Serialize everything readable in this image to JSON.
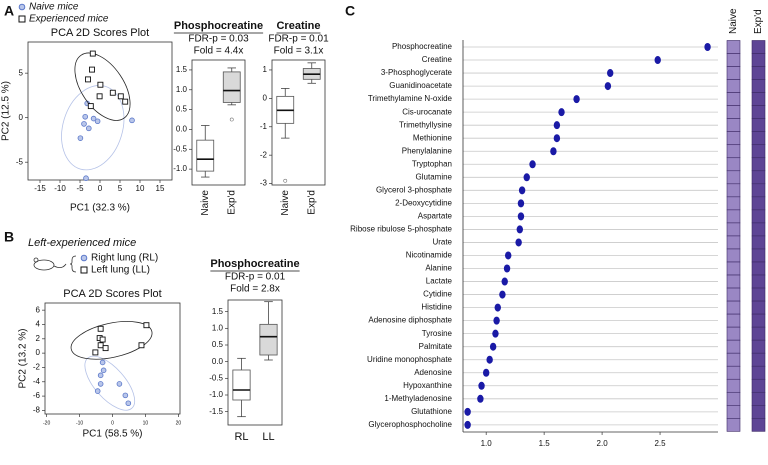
{
  "chart_data": [
    {
      "type": "scatter",
      "panel": "A",
      "title": "PCA 2D Scores Plot",
      "xlabel": "PC1 (32.3 %)",
      "ylabel": "PC2 (12.5 %)",
      "xlim": [
        -18,
        18
      ],
      "ylim": [
        -7,
        8.5
      ],
      "xticks": [
        -15,
        -10,
        -5,
        0,
        5,
        10,
        15
      ],
      "yticks": [
        -5,
        0,
        5
      ],
      "series": [
        {
          "name": "Naive mice",
          "color": "#5b78c9",
          "marker": "circle",
          "x": [
            -3.2,
            -3.7,
            -4,
            -4.9,
            -1.6,
            -0.6,
            -2.8,
            8,
            -3.5
          ],
          "values": [
            1.6,
            0.1,
            -0.7,
            -2.3,
            -0.1,
            -0.4,
            -1.2,
            -0.3,
            -6.8
          ]
        },
        {
          "name": "Experienced mice",
          "color": "#111111",
          "marker": "square",
          "x": [
            -1.8,
            -2,
            -3,
            0.1,
            -0.1,
            3.2,
            5.2,
            6.3,
            -2.3
          ],
          "values": [
            7.2,
            5.4,
            4.3,
            3.7,
            2.4,
            2.8,
            2.4,
            1.8,
            1.3
          ]
        }
      ]
    },
    {
      "type": "box",
      "title": "Phosphocreatine",
      "annotations": [
        "FDR-p = 0.03",
        "Fold = 4.4x"
      ],
      "categories": [
        "Naive",
        "Exp'd"
      ],
      "colors": [
        "#ffffff",
        "#d9d9d9"
      ],
      "ylim": [
        -1.4,
        1.75
      ],
      "yticks": [
        {
          "value": -1,
          "label": "-1.0"
        },
        -0.5,
        {
          "value": 0,
          "label": "0.0"
        },
        0.5,
        {
          "value": 1,
          "label": "1.0"
        },
        1.5
      ],
      "boxes": [
        {
          "min": -1.2,
          "q1": -1.05,
          "median": -0.75,
          "q3": -0.27,
          "max": 0.1,
          "outliers": []
        },
        {
          "min": 0.62,
          "q1": 0.68,
          "median": 0.98,
          "q3": 1.45,
          "max": 1.55,
          "outliers": [
            0.25
          ]
        }
      ]
    },
    {
      "type": "box",
      "title": "Creatine",
      "annotations": [
        "FDR-p = 0.01",
        "Fold = 3.1x"
      ],
      "categories": [
        "Naive",
        "Exp'd"
      ],
      "colors": [
        "#ffffff",
        "#d9d9d9"
      ],
      "ylim": [
        -3.05,
        1.35
      ],
      "yticks": [
        -3,
        -2,
        -1,
        0,
        1
      ],
      "boxes": [
        {
          "min": -1.4,
          "q1": -0.88,
          "median": -0.42,
          "q3": 0.07,
          "max": 0.35,
          "outliers": [
            -2.9
          ]
        },
        {
          "min": 0.53,
          "q1": 0.67,
          "median": 0.85,
          "q3": 1.05,
          "max": 1.25,
          "outliers": []
        }
      ]
    },
    {
      "type": "scatter",
      "panel": "B",
      "legend_title": "Left-experienced mice",
      "title": "PCA 2D Scores Plot",
      "xlabel": "PC1 (58.5 %)",
      "ylabel": "PC2 (13.2 %)",
      "xlim": [
        -20.5,
        20.5
      ],
      "ylim": [
        -8.5,
        7
      ],
      "xticks": [
        -20,
        -10,
        0,
        10,
        20
      ],
      "yticks": [
        -8,
        -6,
        -4,
        -2,
        0,
        2,
        4,
        6
      ],
      "series": [
        {
          "name": "Right lung (RL)",
          "color": "#5b78c9",
          "marker": "circle",
          "x": [
            -3,
            -2.7,
            -3.6,
            -3.6,
            -4.5,
            2.1,
            3.9,
            4.8
          ],
          "values": [
            -1.3,
            -2.4,
            -3.1,
            -4.3,
            -5.3,
            -4.3,
            -5.9,
            -7
          ]
        },
        {
          "name": "Left lung (LL)",
          "color": "#111111",
          "marker": "square",
          "x": [
            -3.6,
            -3.9,
            -3.6,
            -2.1,
            10.3,
            8.8,
            -5.2,
            -3
          ],
          "values": [
            3.4,
            2.1,
            1.1,
            0.7,
            3.9,
            1.1,
            0.1,
            1.9
          ]
        }
      ]
    },
    {
      "type": "box",
      "title": "Phosphocreatine",
      "annotations": [
        "FDR-p = 0.01",
        "Fold = 2.8x"
      ],
      "categories": [
        "RL",
        "LL"
      ],
      "colors": [
        "#ffffff",
        "#d9d9d9"
      ],
      "ylim": [
        -1.9,
        1.85
      ],
      "yticks": [
        -1.5,
        {
          "value": -1,
          "label": "-1.0"
        },
        -0.5,
        {
          "value": 0,
          "label": "0.0"
        },
        0.5,
        {
          "value": 1,
          "label": "1.0"
        },
        1.5
      ],
      "boxes": [
        {
          "min": -1.65,
          "q1": -1.15,
          "median": -0.85,
          "q3": -0.25,
          "max": 0.1,
          "outliers": []
        },
        {
          "min": 0.05,
          "q1": 0.2,
          "median": 0.75,
          "q3": 1.12,
          "max": 1.8,
          "outliers": []
        }
      ]
    },
    {
      "type": "dot",
      "panel": "C",
      "color": "#1a1aa6",
      "xlim": [
        0.8,
        3.0
      ],
      "xticks": [
        {
          "value": 1,
          "label": "1.0"
        },
        1.5,
        {
          "value": 2,
          "label": "2.0"
        },
        2.5
      ],
      "categories": [
        "Phosphocreatine",
        "Creatine",
        "3-Phosphoglycerate",
        "Guanidinoacetate",
        "Trimethylamine N-oxide",
        "Cis-urocanate",
        "Trimethyllysine",
        "Methionine",
        "Phenylalanine",
        "Tryptophan",
        "Glutamine",
        "Glycerol 3-phosphate",
        "2-Deoxycytidine",
        "Aspartate",
        "Ribose ribulose 5-phosphate",
        "Urate",
        "Nicotinamide",
        "Alanine",
        "Lactate",
        "Cytidine",
        "Histidine",
        "Adenosine diphosphate",
        "Tyrosine",
        "Palmitate",
        "Uridine monophosphate",
        "Adenosine",
        "Hypoxanthine",
        "1-Methyladenosine",
        "Glutathione",
        "Glycerophosphocholine"
      ],
      "values": [
        2.91,
        2.48,
        2.07,
        2.05,
        1.78,
        1.65,
        1.61,
        1.61,
        1.58,
        1.4,
        1.35,
        1.31,
        1.3,
        1.3,
        1.29,
        1.28,
        1.19,
        1.18,
        1.16,
        1.14,
        1.1,
        1.09,
        1.08,
        1.06,
        1.03,
        1.0,
        0.96,
        0.95,
        0.84,
        0.84
      ],
      "heatmap": {
        "columns": [
          "Naive",
          "Exp'd"
        ],
        "colors": [
          "#9a87c4",
          "#5e4595"
        ]
      }
    }
  ]
}
